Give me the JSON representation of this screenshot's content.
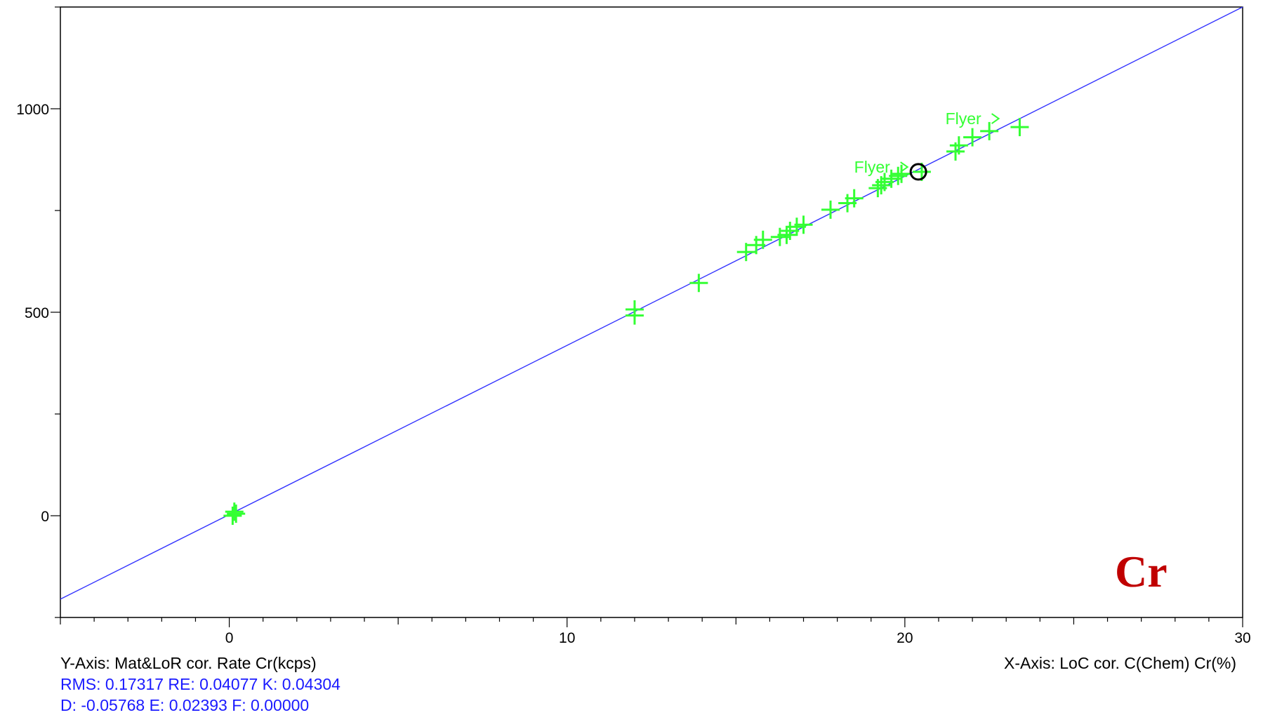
{
  "colors": {
    "fit_line": "#3333ff",
    "points": "#33ff33",
    "plot_frame": "#000000",
    "element_label": "#c00000",
    "stats_text": "#1a1aff",
    "highlight_circle": "#000000",
    "top_strip": "#e6f0fb"
  },
  "element_symbol": "Cr",
  "y_axis_caption": "Y-Axis: Mat&LoR cor. Rate Cr(kcps)",
  "x_axis_caption": "X-Axis: LoC cor. C(Chem) Cr(%)",
  "stats": {
    "line1": "RMS: 0.17317  RE: 0.04077  K: 0.04304",
    "line2": "D: -0.05768  E: 0.02393  F: 0.00000"
  },
  "chart_data": {
    "type": "scatter",
    "xlabel": "X-Axis: LoC cor. C(Chem) Cr(%)",
    "ylabel": "Y-Axis: Mat&LoR cor. Rate Cr(kcps)",
    "xlim": [
      -5,
      30
    ],
    "ylim": [
      -250,
      1250
    ],
    "x_ticks": [
      0,
      10,
      20,
      30
    ],
    "y_ticks": [
      0,
      500,
      1000
    ],
    "x_tick_labels": [
      "0",
      "10",
      "20",
      "30"
    ],
    "y_tick_labels": [
      "0",
      "500",
      "1000"
    ],
    "grid": false,
    "fit_line": {
      "x": [
        -5,
        30
      ],
      "y": [
        -205,
        1250
      ]
    },
    "points": [
      {
        "x": 0.1,
        "y": 0
      },
      {
        "x": 0.15,
        "y": 10
      },
      {
        "x": 0.2,
        "y": 5
      },
      {
        "x": 12.0,
        "y": 492
      },
      {
        "x": 12.0,
        "y": 507
      },
      {
        "x": 13.9,
        "y": 572
      },
      {
        "x": 15.3,
        "y": 648
      },
      {
        "x": 15.6,
        "y": 665
      },
      {
        "x": 15.8,
        "y": 678
      },
      {
        "x": 16.3,
        "y": 685
      },
      {
        "x": 16.5,
        "y": 690
      },
      {
        "x": 16.6,
        "y": 700
      },
      {
        "x": 16.8,
        "y": 710
      },
      {
        "x": 17.0,
        "y": 715
      },
      {
        "x": 17.8,
        "y": 752
      },
      {
        "x": 18.3,
        "y": 768
      },
      {
        "x": 18.5,
        "y": 780
      },
      {
        "x": 19.2,
        "y": 805
      },
      {
        "x": 19.3,
        "y": 812
      },
      {
        "x": 19.4,
        "y": 820
      },
      {
        "x": 19.6,
        "y": 828
      },
      {
        "x": 19.8,
        "y": 835
      },
      {
        "x": 19.9,
        "y": 840
      },
      {
        "x": 20.5,
        "y": 845
      },
      {
        "x": 21.5,
        "y": 895
      },
      {
        "x": 21.6,
        "y": 910
      },
      {
        "x": 22.0,
        "y": 930
      },
      {
        "x": 22.5,
        "y": 945
      },
      {
        "x": 23.4,
        "y": 955
      }
    ],
    "highlighted_point": {
      "x": 20.4,
      "y": 845
    },
    "annotations": [
      {
        "text": "Flyer",
        "x": 18.5,
        "y": 843
      },
      {
        "text": "Flyer",
        "x": 21.2,
        "y": 962
      }
    ]
  }
}
